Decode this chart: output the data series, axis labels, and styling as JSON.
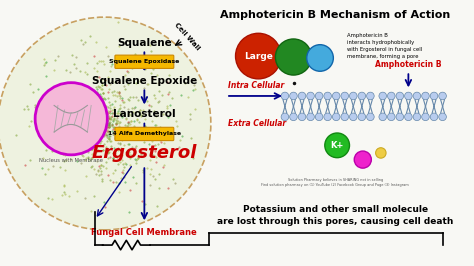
{
  "title": "Amphotericin B Mechanism of Action",
  "bg_color": "#f8f8f4",
  "left_panel": {
    "cell_bg": "#eef2e0",
    "cell_border": "#c8a060",
    "nucleus_fill": "#f5b8d8",
    "nucleus_border": "#cc00cc",
    "nucleus_label": "Nucleus with Membrane",
    "pathway_steps": [
      "Squalene",
      "Squalene Epoxide",
      "Lanosterol",
      "Ergosterol"
    ],
    "enzyme_labels": [
      "Squalene Epoxidase",
      "14 Alfa Demethylase"
    ],
    "enzyme_box_color": "#f5b800",
    "pathway_color": "#00008B",
    "ergosterol_color": "#cc0000",
    "cell_wall_label": "Cell Wall",
    "fungal_membrane_label": "Fungal Cell Membrane",
    "fungal_label_color": "#cc0000"
  },
  "right_panel": {
    "large_circle_color": "#cc2200",
    "large_circle_label": "Large",
    "medium_circle_color": "#228822",
    "small_circle_color": "#44aadd",
    "ampho_b_label": "Amphotericin B",
    "ampho_b_color": "#cc0000",
    "side_text": "Amphotericin B\ninteracts hydrophobically\nwith Ergosterol in fungal cell\nmembrane, forming a pore",
    "intra_label": "Intra Cellular",
    "extra_label": "Extra Cellular",
    "intra_color": "#cc0000",
    "extra_color": "#cc0000",
    "membrane_color": "#b8ccee",
    "k_circle_color": "#22bb22",
    "k_label": "K+",
    "small_mol_color": "#ee22cc",
    "tiny_mol_color": "#eecc44",
    "arrow_color": "#00008B",
    "dot_color": "#111111"
  },
  "bottom_text1": "Potassium and other small molecule",
  "bottom_text2": "are lost through this pores, causing cell death"
}
